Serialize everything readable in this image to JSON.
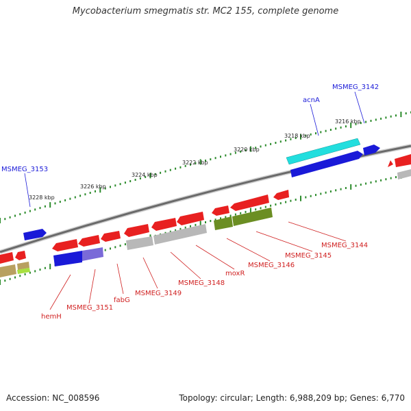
{
  "title": "Mycobacterium smegmatis str. MC2 155, complete genome",
  "footer": {
    "accession": "Accession: NC_008596",
    "topology": "Topology: circular; Length: 6,988,209 bp; Genes: 6,770"
  },
  "colors": {
    "red": "#e82020",
    "blue": "#1a1ad8",
    "cyan": "#22dede",
    "gray": "#b8b8b8",
    "olive": "#6b8e23",
    "tan": "#b8a060",
    "lightgreen": "#a8e040",
    "lavender": "#7a6ad8",
    "tick_green": "#2a8a2a",
    "backbone": "#777777"
  },
  "scale_labels": [
    "3216 kbp",
    "3218 kbp",
    "3220 kbp",
    "3222 kbp",
    "3224 kbp",
    "3226 kbp",
    "3228 kbp"
  ],
  "gene_labels_top": [
    {
      "text": "MSMEG_3142",
      "color": "#1a1ad8"
    },
    {
      "text": "acnA",
      "color": "#1a1ad8"
    },
    {
      "text": "MSMEG_3153",
      "color": "#1a1ad8"
    }
  ],
  "gene_labels_bottom": [
    {
      "text": "MSMEG_3144",
      "color": "#d02020"
    },
    {
      "text": "MSMEG_3145",
      "color": "#d02020"
    },
    {
      "text": "MSMEG_3146",
      "color": "#d02020"
    },
    {
      "text": "moxR",
      "color": "#d02020"
    },
    {
      "text": "MSMEG_3148",
      "color": "#d02020"
    },
    {
      "text": "MSMEG_3149",
      "color": "#d02020"
    },
    {
      "text": "fabG",
      "color": "#d02020"
    },
    {
      "text": "MSMEG_3151",
      "color": "#d02020"
    },
    {
      "text": "hemH",
      "color": "#d02020"
    }
  ]
}
